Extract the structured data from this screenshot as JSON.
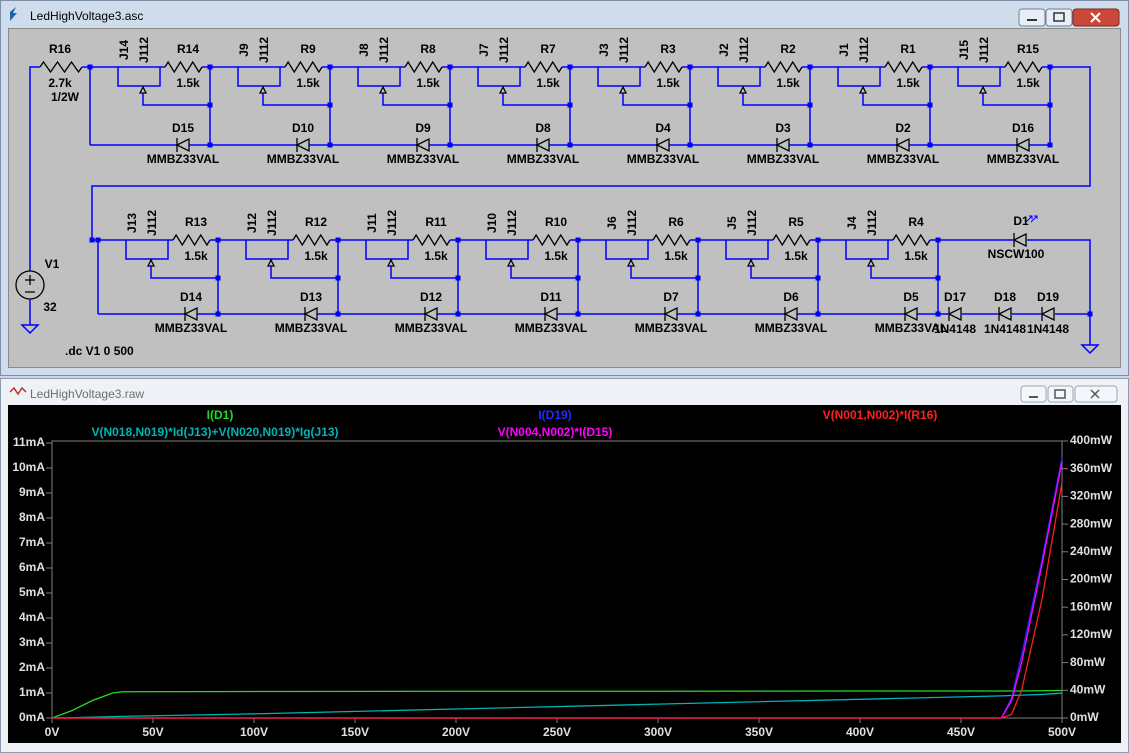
{
  "schematic": {
    "title": "LedHighVoltage3.asc",
    "top_row": [
      {
        "jfet": "J14",
        "jfet_model": "J112",
        "resistor": "R14",
        "resistor_value": "1.5k",
        "diode": "D15",
        "diode_model": "MMBZ33VAL"
      },
      {
        "jfet": "J9",
        "jfet_model": "J112",
        "resistor": "R9",
        "resistor_value": "1.5k",
        "diode": "D10",
        "diode_model": "MMBZ33VAL"
      },
      {
        "jfet": "J8",
        "jfet_model": "J112",
        "resistor": "R8",
        "resistor_value": "1.5k",
        "diode": "D9",
        "diode_model": "MMBZ33VAL"
      },
      {
        "jfet": "J7",
        "jfet_model": "J112",
        "resistor": "R7",
        "resistor_value": "1.5k",
        "diode": "D8",
        "diode_model": "MMBZ33VAL"
      },
      {
        "jfet": "J3",
        "jfet_model": "J112",
        "resistor": "R3",
        "resistor_value": "1.5k",
        "diode": "D4",
        "diode_model": "MMBZ33VAL"
      },
      {
        "jfet": "J2",
        "jfet_model": "J112",
        "resistor": "R2",
        "resistor_value": "1.5k",
        "diode": "D3",
        "diode_model": "MMBZ33VAL"
      },
      {
        "jfet": "J1",
        "jfet_model": "J112",
        "resistor": "R1",
        "resistor_value": "1.5k",
        "diode": "D2",
        "diode_model": "MMBZ33VAL"
      },
      {
        "jfet": "J15",
        "jfet_model": "J112",
        "resistor": "R15",
        "resistor_value": "1.5k",
        "diode": "D16",
        "diode_model": "MMBZ33VAL"
      }
    ],
    "bottom_row": [
      {
        "jfet": "J13",
        "jfet_model": "J112",
        "resistor": "R13",
        "resistor_value": "1.5k",
        "diode": "D14",
        "diode_model": "MMBZ33VAL"
      },
      {
        "jfet": "J12",
        "jfet_model": "J112",
        "resistor": "R12",
        "resistor_value": "1.5k",
        "diode": "D13",
        "diode_model": "MMBZ33VAL"
      },
      {
        "jfet": "J11",
        "jfet_model": "J112",
        "resistor": "R11",
        "resistor_value": "1.5k",
        "diode": "D12",
        "diode_model": "MMBZ33VAL"
      },
      {
        "jfet": "J10",
        "jfet_model": "J112",
        "resistor": "R10",
        "resistor_value": "1.5k",
        "diode": "D11",
        "diode_model": "MMBZ33VAL"
      },
      {
        "jfet": "J6",
        "jfet_model": "J112",
        "resistor": "R6",
        "resistor_value": "1.5k",
        "diode": "D7",
        "diode_model": "MMBZ33VAL"
      },
      {
        "jfet": "J5",
        "jfet_model": "J112",
        "resistor": "R5",
        "resistor_value": "1.5k",
        "diode": "D6",
        "diode_model": "MMBZ33VAL"
      },
      {
        "jfet": "J4",
        "jfet_model": "J112",
        "resistor": "R4",
        "resistor_value": "1.5k",
        "diode": "D5",
        "diode_model": "MMBZ33VAL"
      }
    ],
    "r16": {
      "name": "R16",
      "value": "2.7k",
      "power": "1/2W"
    },
    "v1": {
      "name": "V1",
      "value": "32"
    },
    "led": {
      "name": "D1",
      "model": "NSCW100"
    },
    "series_diodes": [
      {
        "name": "D17",
        "model": "1N4148"
      },
      {
        "name": "D18",
        "model": "1N4148"
      },
      {
        "name": "D19",
        "model": "1N4148"
      }
    ],
    "directive": ".dc V1 0 500"
  },
  "plot_window": {
    "title": "LedHighVoltage3.raw"
  },
  "chart_data": {
    "type": "line",
    "x": [
      0,
      10,
      20,
      30,
      35,
      100,
      200,
      300,
      400,
      470,
      475,
      480,
      490,
      500
    ],
    "series": [
      {
        "name": "I(D1)",
        "color": "#22dd22",
        "values": [
          0,
          0.3,
          0.7,
          1.0,
          1.05,
          1.06,
          1.07,
          1.07,
          1.08,
          1.08,
          1.08,
          1.08,
          1.09,
          1.1
        ]
      },
      {
        "name": "V(N018,N019)*Id(J13)+V(N020,N019)*Ig(J13)",
        "color": "#00b4b4",
        "axis": "y2",
        "values": [
          0,
          0.5,
          1.2,
          2,
          2.4,
          6,
          13,
          20,
          27,
          32,
          32.5,
          33,
          34,
          36
        ]
      },
      {
        "name": "I(D19)",
        "color": "#2828ff",
        "values": [
          0,
          0,
          0,
          0,
          0,
          0,
          0,
          0,
          0,
          0,
          0.8,
          2.5,
          6.3,
          10.4
        ]
      },
      {
        "name": "V(N004,N002)*I(D15)",
        "color": "#ff00ff",
        "axis": "y2",
        "values": [
          0,
          0,
          0,
          0,
          0,
          0,
          0,
          0,
          0,
          0,
          25,
          80,
          220,
          370
        ]
      },
      {
        "name": "V(N001,N002)*I(R16)",
        "color": "#ff2020",
        "axis": "y2",
        "values": [
          0,
          0,
          0,
          0,
          0,
          0,
          0,
          0,
          0,
          0,
          5,
          40,
          170,
          340
        ]
      }
    ],
    "xlim": [
      0,
      500
    ],
    "xticks": [
      {
        "value": 0,
        "label": "0V"
      },
      {
        "value": 50,
        "label": "50V"
      },
      {
        "value": 100,
        "label": "100V"
      },
      {
        "value": 150,
        "label": "150V"
      },
      {
        "value": 200,
        "label": "200V"
      },
      {
        "value": 250,
        "label": "250V"
      },
      {
        "value": 300,
        "label": "300V"
      },
      {
        "value": 350,
        "label": "350V"
      },
      {
        "value": 400,
        "label": "400V"
      },
      {
        "value": 450,
        "label": "450V"
      },
      {
        "value": 500,
        "label": "500V"
      }
    ],
    "ylim": [
      0,
      11
    ],
    "yticks": [
      {
        "value": 0,
        "label": "0mA"
      },
      {
        "value": 1,
        "label": "1mA"
      },
      {
        "value": 2,
        "label": "2mA"
      },
      {
        "value": 3,
        "label": "3mA"
      },
      {
        "value": 4,
        "label": "4mA"
      },
      {
        "value": 5,
        "label": "5mA"
      },
      {
        "value": 6,
        "label": "6mA"
      },
      {
        "value": 7,
        "label": "7mA"
      },
      {
        "value": 8,
        "label": "8mA"
      },
      {
        "value": 9,
        "label": "9mA"
      },
      {
        "value": 10,
        "label": "10mA"
      },
      {
        "value": 11,
        "label": "11mA"
      }
    ],
    "y2lim": [
      0,
      400
    ],
    "y2ticks": [
      {
        "value": 0,
        "label": "0mW"
      },
      {
        "value": 40,
        "label": "40mW"
      },
      {
        "value": 80,
        "label": "80mW"
      },
      {
        "value": 120,
        "label": "120mW"
      },
      {
        "value": 160,
        "label": "160mW"
      },
      {
        "value": 200,
        "label": "200mW"
      },
      {
        "value": 240,
        "label": "240mW"
      },
      {
        "value": 280,
        "label": "280mW"
      },
      {
        "value": 320,
        "label": "320mW"
      },
      {
        "value": 360,
        "label": "360mW"
      },
      {
        "value": 400,
        "label": "400mW"
      }
    ],
    "grid": false
  }
}
